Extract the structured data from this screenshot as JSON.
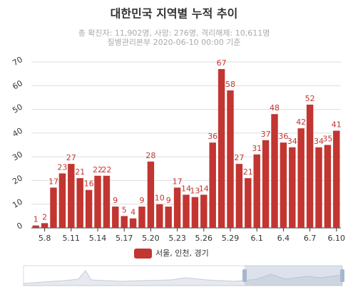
{
  "chart_data": {
    "type": "bar",
    "title": "대한민국 지역별 누적 추이",
    "subtitle": [
      "총 확진자: 11,902명, 사망: 276명, 격리해제: 10,611명",
      "질병관리본부 2020-06-10 00:00 기준"
    ],
    "categories": [
      null,
      "5.8",
      null,
      null,
      "5.11",
      null,
      null,
      "5.14",
      null,
      null,
      "5.17",
      null,
      null,
      "5.20",
      null,
      null,
      "5.23",
      null,
      null,
      "5.26",
      null,
      null,
      "5.29",
      null,
      null,
      "6.1",
      null,
      null,
      "6.4",
      null,
      null,
      "6.7",
      null,
      null,
      "6.10"
    ],
    "series": [
      {
        "name": "서울, 인천, 경기",
        "color": "#c23531",
        "values": [
          1,
          2,
          17,
          23,
          27,
          21,
          16,
          22,
          22,
          9,
          5,
          4,
          9,
          28,
          10,
          9,
          17,
          14,
          13,
          14,
          36,
          67,
          58,
          27,
          21,
          31,
          37,
          48,
          36,
          34,
          42,
          52,
          34,
          35,
          41
        ]
      }
    ],
    "ylim": [
      0,
      70
    ],
    "yticks": [
      0,
      10,
      20,
      30,
      40,
      50,
      60,
      70
    ],
    "grid": true,
    "legend": "bottom"
  }
}
